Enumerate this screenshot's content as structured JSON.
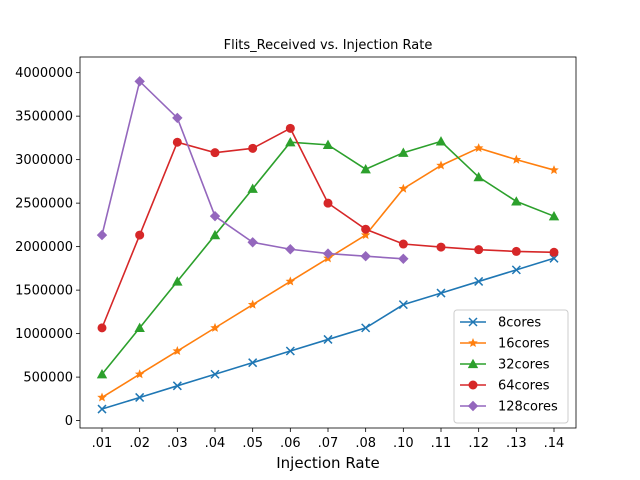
{
  "chart_data": {
    "type": "line",
    "title": "Flits_Received vs. Injection Rate",
    "xlabel": "Injection Rate",
    "ylabel": "",
    "categories": [
      ".01",
      ".02",
      ".03",
      ".04",
      ".05",
      ".06",
      ".07",
      ".08",
      ".10",
      ".11",
      ".12",
      ".13",
      ".14"
    ],
    "ylim": [
      0,
      4000000
    ],
    "yticks": [
      0,
      500000,
      1000000,
      1500000,
      2000000,
      2500000,
      3000000,
      3500000,
      4000000
    ],
    "ytick_labels": [
      "0",
      "500000",
      "1000000",
      "1500000",
      "2000000",
      "2500000",
      "3000000",
      "3500000",
      "4000000"
    ],
    "grid": false,
    "legend_position": "lower-right",
    "series": [
      {
        "name": "8cores",
        "color": "#1f77b4",
        "marker": "x",
        "values": [
          133000,
          266000,
          400000,
          533000,
          666000,
          800000,
          933000,
          1066000,
          1333000,
          1466000,
          1600000,
          1733000,
          1866000
        ]
      },
      {
        "name": "16cores",
        "color": "#ff7f0e",
        "marker": "star",
        "values": [
          266000,
          533000,
          800000,
          1066000,
          1333000,
          1600000,
          1866000,
          2133000,
          2666000,
          2933000,
          3133000,
          3000000,
          2880000
        ]
      },
      {
        "name": "32cores",
        "color": "#2ca02c",
        "marker": "triangle",
        "values": [
          533000,
          1066000,
          1600000,
          2133000,
          2666000,
          3200000,
          3170000,
          2890000,
          3080000,
          3210000,
          2800000,
          2520000,
          2350000
        ]
      },
      {
        "name": "64cores",
        "color": "#d62728",
        "marker": "circle",
        "values": [
          1066000,
          2133000,
          3200000,
          3080000,
          3130000,
          3360000,
          2500000,
          2200000,
          2030000,
          1995000,
          1965000,
          1945000,
          1935000
        ]
      },
      {
        "name": "128cores",
        "color": "#9467bd",
        "marker": "diamond",
        "values": [
          2133000,
          3900000,
          3480000,
          2350000,
          2050000,
          1970000,
          1920000,
          1890000,
          1860000,
          null,
          null,
          null,
          null
        ]
      }
    ]
  }
}
